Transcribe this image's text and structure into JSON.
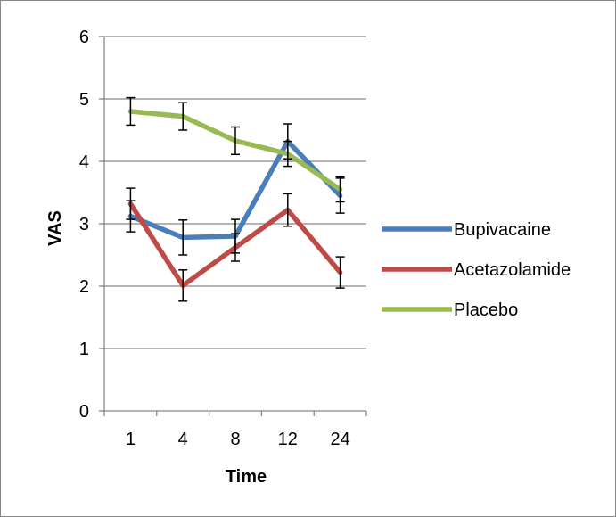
{
  "chart_data": {
    "type": "line",
    "xlabel": "Time",
    "ylabel": "VAS",
    "categories": [
      "1",
      "4",
      "8",
      "12",
      "24"
    ],
    "ylim": [
      0,
      6
    ],
    "yticks": [
      0,
      1,
      2,
      3,
      4,
      5,
      6
    ],
    "grid": true,
    "legend_position": "right",
    "series": [
      {
        "name": "Bupivacaine",
        "color": "#4a7ebb",
        "values": [
          3.12,
          2.78,
          2.8,
          4.32,
          3.45
        ],
        "errors": [
          0.25,
          0.28,
          0.27,
          0.28,
          0.28
        ]
      },
      {
        "name": "Acetazolamide",
        "color": "#be4b48",
        "values": [
          3.32,
          2.01,
          2.62,
          3.22,
          2.22
        ],
        "errors": [
          0.25,
          0.25,
          0.22,
          0.26,
          0.25
        ]
      },
      {
        "name": "Placebo",
        "color": "#98b954",
        "values": [
          4.8,
          4.72,
          4.33,
          4.12,
          3.55
        ],
        "errors": [
          0.22,
          0.22,
          0.22,
          0.2,
          0.2
        ]
      }
    ]
  }
}
